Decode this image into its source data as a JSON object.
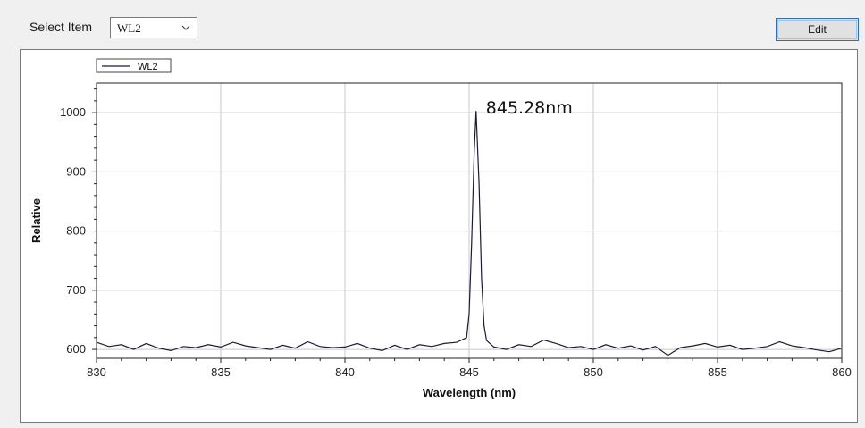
{
  "toolbar": {
    "select_label": "Select Item",
    "selected_item": "WL2",
    "edit_label": "Edit"
  },
  "chart_data": {
    "type": "line",
    "title": "",
    "xlabel": "Wavelength (nm)",
    "ylabel": "Relative",
    "xlim": [
      830,
      860
    ],
    "ylim": [
      585,
      1050
    ],
    "xticks": [
      830,
      835,
      840,
      845,
      850,
      855,
      860
    ],
    "yticks": [
      600,
      700,
      800,
      900,
      1000
    ],
    "grid": true,
    "legend": {
      "position": "top-left",
      "entries": [
        "WL2"
      ]
    },
    "annotations": [
      {
        "text": "845.28nm",
        "x": 845.28,
        "y": 1003
      }
    ],
    "series": [
      {
        "name": "WL2",
        "color": "#1a1a3a",
        "x": [
          830.0,
          830.5,
          831.0,
          831.5,
          832.0,
          832.5,
          833.0,
          833.5,
          834.0,
          834.5,
          835.0,
          835.5,
          836.0,
          836.5,
          837.0,
          837.5,
          838.0,
          838.5,
          839.0,
          839.5,
          840.0,
          840.5,
          841.0,
          841.5,
          842.0,
          842.5,
          843.0,
          843.5,
          844.0,
          844.5,
          844.9,
          845.0,
          845.1,
          845.2,
          845.28,
          845.4,
          845.5,
          845.6,
          845.7,
          846.0,
          846.5,
          847.0,
          847.5,
          848.0,
          848.5,
          849.0,
          849.5,
          850.0,
          850.5,
          851.0,
          851.5,
          852.0,
          852.5,
          853.0,
          853.5,
          854.0,
          854.5,
          855.0,
          855.5,
          856.0,
          856.5,
          857.0,
          857.5,
          858.0,
          858.5,
          859.0,
          859.5,
          860.0
        ],
        "y": [
          612,
          605,
          608,
          600,
          610,
          602,
          598,
          605,
          603,
          608,
          604,
          612,
          606,
          603,
          600,
          607,
          602,
          613,
          605,
          603,
          604,
          610,
          602,
          598,
          607,
          600,
          608,
          605,
          610,
          612,
          620,
          660,
          780,
          930,
          1003,
          880,
          720,
          640,
          615,
          604,
          600,
          608,
          605,
          616,
          610,
          603,
          605,
          600,
          608,
          602,
          606,
          599,
          605,
          590,
          603,
          606,
          610,
          604,
          607,
          600,
          602,
          605,
          613,
          606,
          603,
          599,
          596,
          602
        ]
      }
    ]
  }
}
